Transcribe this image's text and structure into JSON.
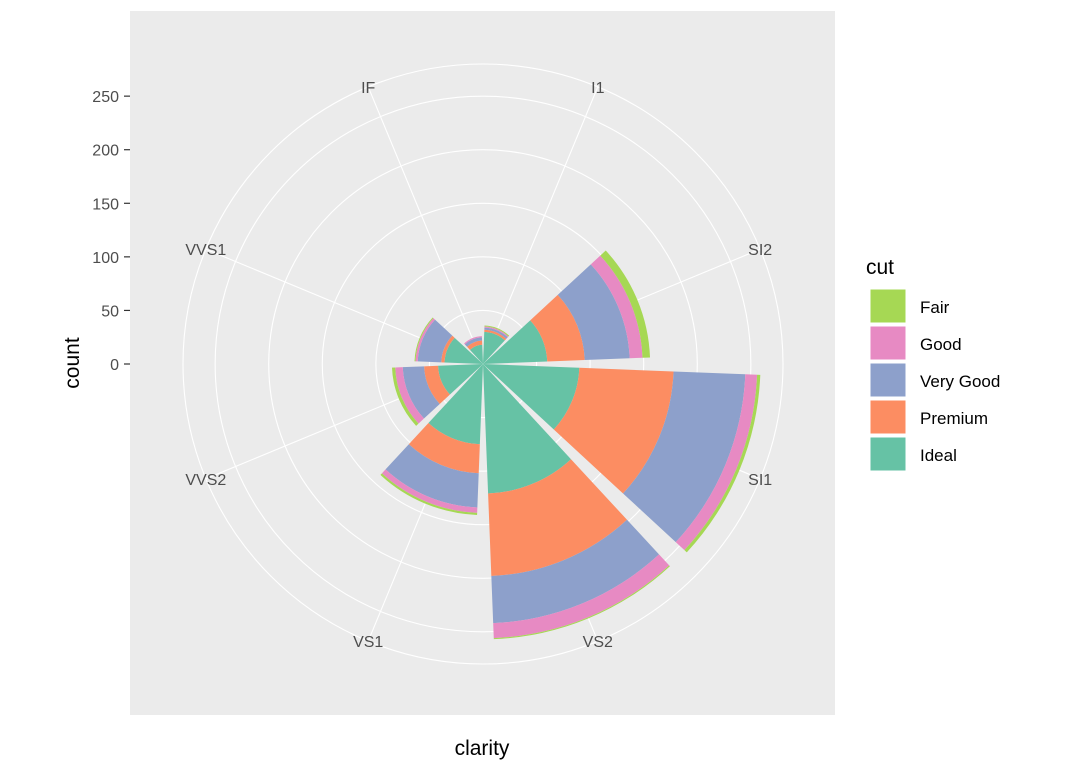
{
  "chart_data": {
    "type": "bar",
    "coord": "polar",
    "title": "",
    "xlabel": "clarity",
    "ylabel": "count",
    "categories": [
      "I1",
      "SI2",
      "SI1",
      "VS2",
      "VS1",
      "VVS2",
      "VVS1",
      "IF"
    ],
    "category_label_positions": "outer ring",
    "ylim": [
      0,
      280
    ],
    "yticks": [
      0,
      50,
      100,
      150,
      200,
      250
    ],
    "grid": true,
    "stacking_order": [
      "Ideal",
      "Premium",
      "Very Good",
      "Good",
      "Fair"
    ],
    "series": [
      {
        "name": "Ideal",
        "values": [
          30,
          60,
          90,
          121,
          75,
          42,
          36,
          18
        ]
      },
      {
        "name": "Premium",
        "values": [
          2,
          35,
          88,
          77,
          27,
          13,
          3,
          4
        ]
      },
      {
        "name": "Very Good",
        "values": [
          2,
          42,
          67,
          44,
          32,
          20,
          22,
          3
        ]
      },
      {
        "name": "Good",
        "values": [
          1,
          12,
          11,
          14,
          5,
          7,
          2,
          1
        ]
      },
      {
        "name": "Fair",
        "values": [
          1,
          7,
          3,
          1,
          2,
          3,
          1,
          0
        ]
      }
    ]
  },
  "legend": {
    "title": "cut",
    "position": "right",
    "items": [
      {
        "label": "Fair",
        "color": "#a6d854"
      },
      {
        "label": "Good",
        "color": "#e78ac3"
      },
      {
        "label": "Very Good",
        "color": "#8da0cb"
      },
      {
        "label": "Premium",
        "color": "#fc8d62"
      },
      {
        "label": "Ideal",
        "color": "#66c2a5"
      }
    ]
  },
  "colors": {
    "panel_background": "#ebebeb",
    "grid": "#ffffff"
  }
}
